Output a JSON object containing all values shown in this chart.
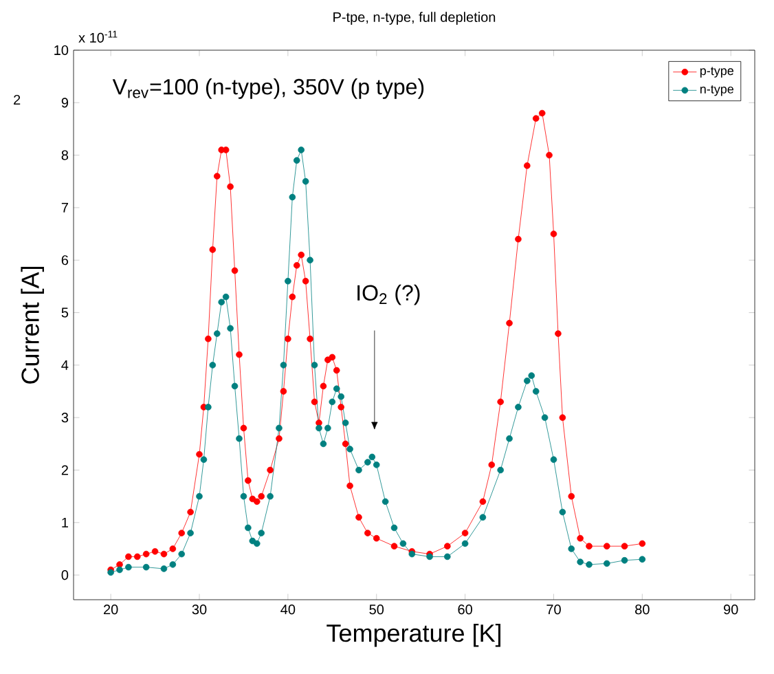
{
  "chart_data": {
    "type": "line",
    "title": "P-tpe, n-type, full depletion",
    "xlabel": "Temperature [K]",
    "ylabel": "Current [A]",
    "xlim": [
      15.8,
      92.7
    ],
    "ylim": [
      -0.47,
      10
    ],
    "xticks": [
      20,
      30,
      40,
      50,
      60,
      70,
      80,
      90
    ],
    "yticks": [
      0,
      1,
      2,
      3,
      4,
      5,
      6,
      7,
      8,
      9,
      10
    ],
    "legend": "top right",
    "marker": "circle",
    "line_style": "solid",
    "annotations": [
      "x 10$^{-11}$",
      "V$_{rev}$=100 (n-type), 350V (p type)",
      "IO$_{2}$ (?)",
      "2"
    ],
    "series": [
      {
        "name": "p-type",
        "color": "#ff0000",
        "x": [
          20,
          21,
          22,
          23,
          24,
          25,
          26,
          27,
          28,
          29,
          30,
          30.5,
          31,
          31.5,
          32,
          32.5,
          33,
          33.5,
          34,
          34.5,
          35,
          35.5,
          36,
          36.5,
          37,
          38,
          39,
          39.5,
          40,
          40.5,
          41,
          41.5,
          42,
          42.5,
          43,
          43.5,
          44,
          44.5,
          45,
          45.5,
          46,
          46.5,
          47,
          48,
          49,
          50,
          52,
          54,
          56,
          58,
          60,
          62,
          63,
          64,
          65,
          66,
          67,
          68,
          68.7,
          69.5,
          70,
          70.5,
          71,
          72,
          73,
          74,
          76,
          78,
          80
        ],
        "values": [
          0.1,
          0.2,
          0.35,
          0.35,
          0.4,
          0.45,
          0.4,
          0.5,
          0.8,
          1.2,
          2.3,
          3.2,
          4.5,
          6.2,
          7.6,
          8.1,
          8.1,
          7.4,
          5.8,
          4.2,
          2.8,
          1.8,
          1.45,
          1.4,
          1.5,
          2.0,
          2.6,
          3.5,
          4.5,
          5.3,
          5.9,
          6.1,
          5.6,
          4.5,
          3.3,
          2.9,
          3.6,
          4.1,
          4.15,
          3.9,
          3.2,
          2.5,
          1.7,
          1.1,
          0.8,
          0.7,
          0.55,
          0.45,
          0.4,
          0.55,
          0.8,
          1.4,
          2.1,
          3.3,
          4.8,
          6.4,
          7.8,
          8.7,
          8.8,
          8.0,
          6.5,
          4.6,
          3.0,
          1.5,
          0.7,
          0.55,
          0.55,
          0.55,
          0.6
        ]
      },
      {
        "name": "n-type",
        "color": "#008080",
        "x": [
          20,
          21,
          22,
          24,
          26,
          27,
          28,
          29,
          30,
          30.5,
          31,
          31.5,
          32,
          32.5,
          33,
          33.5,
          34,
          34.5,
          35,
          35.5,
          36,
          36.5,
          37,
          38,
          39,
          39.5,
          40,
          40.5,
          41,
          41.5,
          42,
          42.5,
          43,
          43.5,
          44,
          44.5,
          45,
          45.5,
          46,
          46.5,
          47,
          48,
          49,
          49.5,
          50,
          51,
          52,
          53,
          54,
          56,
          58,
          60,
          62,
          64,
          65,
          66,
          67,
          67.5,
          68,
          69,
          70,
          71,
          72,
          73,
          74,
          76,
          78,
          80
        ],
        "values": [
          0.05,
          0.1,
          0.15,
          0.15,
          0.12,
          0.2,
          0.4,
          0.8,
          1.5,
          2.2,
          3.2,
          4.0,
          4.6,
          5.2,
          5.3,
          4.7,
          3.6,
          2.6,
          1.5,
          0.9,
          0.65,
          0.6,
          0.8,
          1.5,
          2.8,
          4.0,
          5.6,
          7.2,
          7.9,
          8.1,
          7.5,
          6.0,
          4.0,
          2.8,
          2.5,
          2.8,
          3.3,
          3.55,
          3.4,
          2.9,
          2.4,
          2.0,
          2.15,
          2.25,
          2.1,
          1.4,
          0.9,
          0.6,
          0.4,
          0.35,
          0.35,
          0.6,
          1.1,
          2.0,
          2.6,
          3.2,
          3.7,
          3.8,
          3.5,
          3.0,
          2.2,
          1.2,
          0.5,
          0.25,
          0.2,
          0.22,
          0.28,
          0.3
        ]
      }
    ]
  }
}
